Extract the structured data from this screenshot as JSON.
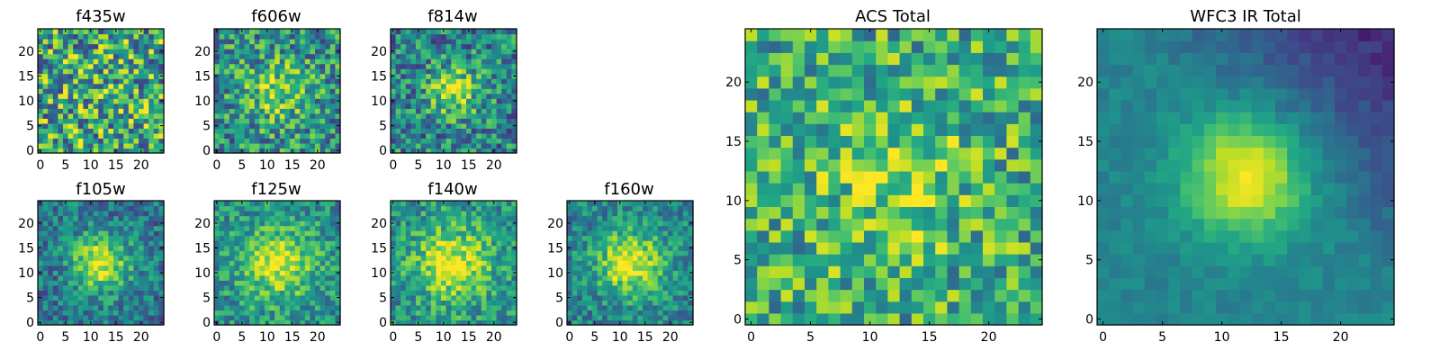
{
  "figure": {
    "colormap": "viridis",
    "colors": {
      "background": "#ffffff",
      "axis": "#000000"
    }
  },
  "chart_data": [
    {
      "type": "heatmap",
      "id": "f435w",
      "title": "f435w",
      "grid_size": 25,
      "xlim": [
        -0.5,
        24.5
      ],
      "ylim": [
        -0.5,
        24.5
      ],
      "xticks": [
        0,
        5,
        10,
        15,
        20
      ],
      "yticks": [
        0,
        5,
        10,
        15,
        20
      ],
      "x_tick_labels": [
        "0",
        "5",
        "10",
        "15",
        "20"
      ],
      "y_tick_labels": [
        "0",
        "5",
        "10",
        "15",
        "20"
      ],
      "sigma": 5.0,
      "noise": 0.42,
      "peak": 0.05,
      "center": [
        12,
        12
      ],
      "base": 0.6,
      "seed": 11
    },
    {
      "type": "heatmap",
      "id": "f606w",
      "title": "f606w",
      "grid_size": 25,
      "xlim": [
        -0.5,
        24.5
      ],
      "ylim": [
        -0.5,
        24.5
      ],
      "xticks": [
        0,
        5,
        10,
        15,
        20
      ],
      "yticks": [
        0,
        5,
        10,
        15,
        20
      ],
      "x_tick_labels": [
        "0",
        "5",
        "10",
        "15",
        "20"
      ],
      "y_tick_labels": [
        "0",
        "5",
        "10",
        "15",
        "20"
      ],
      "sigma": 4.5,
      "noise": 0.32,
      "peak": 0.3,
      "center": [
        12,
        12
      ],
      "base": 0.5,
      "seed": 23
    },
    {
      "type": "heatmap",
      "id": "f814w",
      "title": "f814w",
      "grid_size": 25,
      "xlim": [
        -0.5,
        24.5
      ],
      "ylim": [
        -0.5,
        24.5
      ],
      "xticks": [
        0,
        5,
        10,
        15,
        20
      ],
      "yticks": [
        0,
        5,
        10,
        15,
        20
      ],
      "x_tick_labels": [
        "0",
        "5",
        "10",
        "15",
        "20"
      ],
      "y_tick_labels": [
        "0",
        "5",
        "10",
        "15",
        "20"
      ],
      "sigma": 3.5,
      "noise": 0.3,
      "peak": 0.45,
      "center": [
        12,
        12
      ],
      "base": 0.45,
      "seed": 37
    },
    {
      "type": "heatmap",
      "id": "f105w",
      "title": "f105w",
      "grid_size": 25,
      "xlim": [
        -0.5,
        24.5
      ],
      "ylim": [
        -0.5,
        24.5
      ],
      "xticks": [
        0,
        5,
        10,
        15,
        20
      ],
      "yticks": [
        0,
        5,
        10,
        15,
        20
      ],
      "x_tick_labels": [
        "0",
        "5",
        "10",
        "15",
        "20"
      ],
      "y_tick_labels": [
        "0",
        "5",
        "10",
        "15",
        "20"
      ],
      "sigma": 4.0,
      "noise": 0.22,
      "peak": 0.55,
      "center": [
        12,
        12
      ],
      "base": 0.4,
      "seed": 41
    },
    {
      "type": "heatmap",
      "id": "f125w",
      "title": "f125w",
      "grid_size": 25,
      "xlim": [
        -0.5,
        24.5
      ],
      "ylim": [
        -0.5,
        24.5
      ],
      "xticks": [
        0,
        5,
        10,
        15,
        20
      ],
      "yticks": [
        0,
        5,
        10,
        15,
        20
      ],
      "x_tick_labels": [
        "0",
        "5",
        "10",
        "15",
        "20"
      ],
      "y_tick_labels": [
        "0",
        "5",
        "10",
        "15",
        "20"
      ],
      "sigma": 5.0,
      "noise": 0.22,
      "peak": 0.45,
      "center": [
        12,
        12
      ],
      "base": 0.5,
      "seed": 53
    },
    {
      "type": "heatmap",
      "id": "f140w",
      "title": "f140w",
      "grid_size": 25,
      "xlim": [
        -0.5,
        24.5
      ],
      "ylim": [
        -0.5,
        24.5
      ],
      "xticks": [
        0,
        5,
        10,
        15,
        20
      ],
      "yticks": [
        0,
        5,
        10,
        15,
        20
      ],
      "x_tick_labels": [
        "0",
        "5",
        "10",
        "15",
        "20"
      ],
      "y_tick_labels": [
        "0",
        "5",
        "10",
        "15",
        "20"
      ],
      "sigma": 5.5,
      "noise": 0.22,
      "peak": 0.45,
      "center": [
        12,
        12
      ],
      "base": 0.5,
      "seed": 67
    },
    {
      "type": "heatmap",
      "id": "f160w",
      "title": "f160w",
      "grid_size": 25,
      "xlim": [
        -0.5,
        24.5
      ],
      "ylim": [
        -0.5,
        24.5
      ],
      "xticks": [
        0,
        5,
        10,
        15,
        20
      ],
      "yticks": [
        0,
        5,
        10,
        15,
        20
      ],
      "x_tick_labels": [
        "0",
        "5",
        "10",
        "15",
        "20"
      ],
      "y_tick_labels": [
        "0",
        "5",
        "10",
        "15",
        "20"
      ],
      "sigma": 4.5,
      "noise": 0.2,
      "peak": 0.55,
      "center": [
        12,
        12
      ],
      "base": 0.45,
      "seed": 79
    },
    {
      "type": "heatmap",
      "id": "acs_total",
      "title": "ACS Total",
      "grid_size": 25,
      "xlim": [
        -0.5,
        24.5
      ],
      "ylim": [
        -0.5,
        24.5
      ],
      "xticks": [
        0,
        5,
        10,
        15,
        20
      ],
      "yticks": [
        0,
        5,
        10,
        15,
        20
      ],
      "x_tick_labels": [
        "0",
        "5",
        "10",
        "15",
        "20"
      ],
      "y_tick_labels": [
        "0",
        "5",
        "10",
        "15",
        "20"
      ],
      "sigma": 4.5,
      "noise": 0.3,
      "peak": 0.2,
      "center": [
        12,
        12
      ],
      "base": 0.62,
      "seed": 97
    },
    {
      "type": "heatmap",
      "id": "wfc3_ir_total",
      "title": "WFC3 IR Total",
      "grid_size": 25,
      "xlim": [
        -0.5,
        24.5
      ],
      "ylim": [
        -0.5,
        24.5
      ],
      "xticks": [
        0,
        5,
        10,
        15,
        20
      ],
      "yticks": [
        0,
        5,
        10,
        15,
        20
      ],
      "x_tick_labels": [
        "0",
        "5",
        "10",
        "15",
        "20"
      ],
      "y_tick_labels": [
        "0",
        "5",
        "10",
        "15",
        "20"
      ],
      "sigma": 3.5,
      "noise": 0.06,
      "peak": 0.55,
      "center": [
        12,
        12
      ],
      "base": 0.45,
      "seed": 113,
      "gradient": true
    }
  ]
}
